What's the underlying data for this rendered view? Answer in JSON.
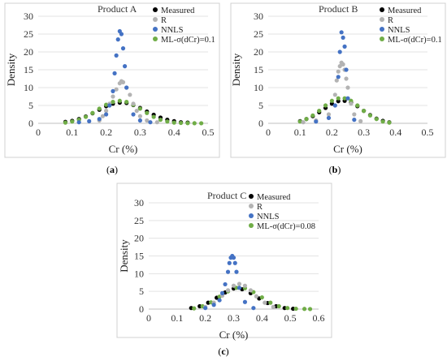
{
  "chart_data": [
    {
      "type": "scatter",
      "panel_label": "(a)",
      "caption_letter": "a",
      "title": "Product A",
      "xlabel": "Cr (%)",
      "ylabel": "Density",
      "xlim": [
        0,
        0.5
      ],
      "ylim": [
        0,
        30
      ],
      "xticks": [
        0,
        0.1,
        0.2,
        0.3,
        0.4,
        0.5
      ],
      "xtick_labels": [
        "0",
        "0.1",
        "0.2",
        "0.3",
        "0.4",
        "0.5"
      ],
      "yticks": [
        0,
        5,
        10,
        15,
        20,
        25,
        30
      ],
      "ytick_labels": [
        "0",
        "5",
        "10",
        "15",
        "20",
        "25",
        "30"
      ],
      "grid": true,
      "legend": "top-right",
      "series": [
        {
          "name": "Measured",
          "color": "#000000",
          "x": [
            0.08,
            0.1,
            0.12,
            0.14,
            0.16,
            0.18,
            0.2,
            0.22,
            0.24,
            0.26,
            0.28,
            0.3,
            0.32,
            0.34,
            0.36,
            0.38,
            0.4,
            0.42,
            0.44
          ],
          "y": [
            0.4,
            0.7,
            1.2,
            1.9,
            2.8,
            3.8,
            4.8,
            5.5,
            5.8,
            5.7,
            5.1,
            4.3,
            3.3,
            2.4,
            1.6,
            1.0,
            0.6,
            0.3,
            0.2
          ]
        },
        {
          "name": "R",
          "color": "#b3b3b3",
          "x": [
            0.18,
            0.19,
            0.2,
            0.21,
            0.22,
            0.23,
            0.24,
            0.245,
            0.25,
            0.26,
            0.27,
            0.28,
            0.29,
            0.3,
            0.32,
            0.35
          ],
          "y": [
            0.8,
            2.0,
            3.5,
            5.5,
            7.5,
            9.5,
            11.2,
            11.8,
            11.5,
            10.0,
            8.0,
            5.5,
            3.5,
            2.0,
            0.8,
            0.3
          ]
        },
        {
          "name": "NNLS",
          "color": "#4472c4",
          "x": [
            0.12,
            0.15,
            0.18,
            0.2,
            0.21,
            0.22,
            0.225,
            0.23,
            0.235,
            0.24,
            0.245,
            0.25,
            0.255,
            0.26,
            0.28,
            0.3,
            0.33
          ],
          "y": [
            0.3,
            0.6,
            1.2,
            2.5,
            5.0,
            9.0,
            14.0,
            19.0,
            23.5,
            25.8,
            25.0,
            21.0,
            16.0,
            10.0,
            2.5,
            0.8,
            0.3
          ]
        },
        {
          "name": "ML-σ(dCr)=0.1",
          "color": "#70ad47",
          "x": [
            0.08,
            0.1,
            0.12,
            0.14,
            0.16,
            0.18,
            0.2,
            0.22,
            0.24,
            0.26,
            0.28,
            0.3,
            0.32,
            0.34,
            0.36,
            0.38,
            0.4,
            0.42,
            0.44,
            0.46,
            0.48
          ],
          "y": [
            0.2,
            0.5,
            1.0,
            1.8,
            2.9,
            4.1,
            5.2,
            6.0,
            6.3,
            6.0,
            5.2,
            4.1,
            2.9,
            1.8,
            1.0,
            0.5,
            0.2,
            0.1,
            0.05,
            0.02,
            0.01
          ]
        }
      ]
    },
    {
      "type": "scatter",
      "panel_label": "(b)",
      "caption_letter": "b",
      "title": "Product B",
      "xlabel": "Cr (%)",
      "ylabel": "Density",
      "xlim": [
        0,
        0.5
      ],
      "ylim": [
        0,
        30
      ],
      "xticks": [
        0,
        0.1,
        0.2,
        0.3,
        0.4,
        0.5
      ],
      "xtick_labels": [
        "0",
        "0.1",
        "0.2",
        "0.3",
        "0.4",
        "0.5"
      ],
      "yticks": [
        0,
        5,
        10,
        15,
        20,
        25,
        30
      ],
      "ytick_labels": [
        "0",
        "5",
        "10",
        "15",
        "20",
        "25",
        "30"
      ],
      "grid": true,
      "legend": "top-right",
      "series": [
        {
          "name": "Measured",
          "color": "#000000",
          "x": [
            0.1,
            0.12,
            0.14,
            0.16,
            0.18,
            0.2,
            0.22,
            0.24,
            0.26,
            0.28,
            0.3,
            0.32,
            0.34,
            0.36,
            0.38
          ],
          "y": [
            0.6,
            1.2,
            2.0,
            3.1,
            4.3,
            5.5,
            6.2,
            6.3,
            5.8,
            4.8,
            3.5,
            2.3,
            1.3,
            0.7,
            0.3
          ]
        },
        {
          "name": "R",
          "color": "#b3b3b3",
          "x": [
            0.11,
            0.15,
            0.19,
            0.21,
            0.215,
            0.22,
            0.225,
            0.23,
            0.235,
            0.24,
            0.245,
            0.25,
            0.26,
            0.27,
            0.29
          ],
          "y": [
            0.3,
            0.8,
            2.5,
            8.0,
            12.0,
            14.5,
            16.0,
            17.0,
            16.5,
            15.0,
            12.5,
            10.0,
            5.5,
            2.5,
            0.6
          ]
        },
        {
          "name": "NNLS",
          "color": "#4472c4",
          "x": [
            0.15,
            0.19,
            0.21,
            0.22,
            0.225,
            0.23,
            0.235,
            0.24,
            0.245,
            0.25,
            0.27
          ],
          "y": [
            0.5,
            1.5,
            5.0,
            13.0,
            20.0,
            25.5,
            24.0,
            21.5,
            15.0,
            7.0,
            1.0
          ]
        },
        {
          "name": "ML-σ(dCr)=0.1",
          "color": "#70ad47",
          "x": [
            0.1,
            0.12,
            0.14,
            0.16,
            0.18,
            0.2,
            0.22,
            0.24,
            0.26,
            0.28,
            0.3,
            0.32,
            0.34,
            0.36,
            0.38
          ],
          "y": [
            0.5,
            1.2,
            2.2,
            3.5,
            5.0,
            6.3,
            7.0,
            7.0,
            6.3,
            5.0,
            3.5,
            2.2,
            1.2,
            0.5,
            0.2
          ]
        }
      ]
    },
    {
      "type": "scatter",
      "panel_label": "(c)",
      "caption_letter": "c",
      "title": "Product C",
      "xlabel": "Cr (%)",
      "ylabel": "Density",
      "xlim": [
        0,
        0.6
      ],
      "ylim": [
        0,
        30
      ],
      "xticks": [
        0,
        0.1,
        0.2,
        0.3,
        0.4,
        0.5,
        0.6
      ],
      "xtick_labels": [
        "0",
        "0.1",
        "0.2",
        "0.3",
        "0.4",
        "0.5",
        "0.6"
      ],
      "yticks": [
        0,
        5,
        10,
        15,
        20,
        25,
        30
      ],
      "ytick_labels": [
        "0",
        "5",
        "10",
        "15",
        "20",
        "25",
        "30"
      ],
      "grid": true,
      "legend": "top-right",
      "series": [
        {
          "name": "Measured",
          "color": "#000000",
          "x": [
            0.15,
            0.18,
            0.21,
            0.24,
            0.27,
            0.3,
            0.33,
            0.36,
            0.39,
            0.42,
            0.45,
            0.48,
            0.51
          ],
          "y": [
            0.3,
            0.8,
            1.8,
            3.2,
            4.7,
            5.8,
            5.6,
            4.5,
            3.0,
            1.7,
            0.8,
            0.3,
            0.1
          ]
        },
        {
          "name": "R",
          "color": "#b3b3b3",
          "x": [
            0.2,
            0.23,
            0.26,
            0.28,
            0.3,
            0.32,
            0.34,
            0.36,
            0.38,
            0.41,
            0.44
          ],
          "y": [
            0.6,
            1.8,
            3.8,
            5.3,
            6.6,
            7.1,
            6.6,
            5.3,
            3.6,
            1.8,
            0.6
          ]
        },
        {
          "name": "NNLS",
          "color": "#4472c4",
          "x": [
            0.2,
            0.23,
            0.25,
            0.26,
            0.27,
            0.28,
            0.285,
            0.29,
            0.295,
            0.3,
            0.305,
            0.31,
            0.32,
            0.34,
            0.37
          ],
          "y": [
            0.3,
            1.2,
            2.5,
            4.5,
            7.0,
            10.5,
            13.0,
            14.5,
            15.0,
            14.5,
            13.0,
            10.5,
            6.0,
            2.0,
            0.3
          ]
        },
        {
          "name": "ML-σ(dCr)=0.08",
          "color": "#70ad47",
          "x": [
            0.16,
            0.19,
            0.22,
            0.25,
            0.28,
            0.31,
            0.34,
            0.37,
            0.4,
            0.43,
            0.46,
            0.49,
            0.52,
            0.55,
            0.57
          ],
          "y": [
            0.2,
            0.8,
            1.9,
            3.5,
            5.0,
            6.0,
            5.9,
            4.8,
            3.3,
            1.8,
            0.8,
            0.3,
            0.1,
            0.05,
            0.02
          ]
        }
      ]
    }
  ]
}
